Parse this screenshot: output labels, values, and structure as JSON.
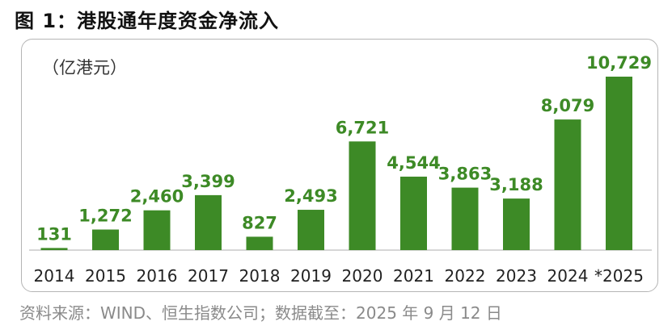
{
  "title": "图 1：港股通年度资金净流入",
  "source": "资料来源：WIND、恒生指数公司；数据截至：2025 年 9 月 12 日",
  "chart_data": {
    "type": "bar",
    "unit_label": "（亿港元）",
    "categories": [
      "2014",
      "2015",
      "2016",
      "2017",
      "2018",
      "2019",
      "2020",
      "2021",
      "2022",
      "2023",
      "2024",
      "*2025"
    ],
    "values": [
      131,
      1272,
      2460,
      3399,
      827,
      2493,
      6721,
      4544,
      3863,
      3188,
      8079,
      10729
    ],
    "data_labels": [
      "131",
      "1,272",
      "2,460",
      "3,399",
      "827",
      "2,493",
      "6,721",
      "4,544",
      "3,863",
      "3,188",
      "8,079",
      "10,729"
    ],
    "ylim": [
      0,
      10729
    ],
    "grid": false,
    "legend": "none",
    "colors": {
      "bar": "#3d8a26",
      "label": "#3d8a26",
      "axis": "#c8c8c8",
      "tick": "#222222"
    }
  }
}
